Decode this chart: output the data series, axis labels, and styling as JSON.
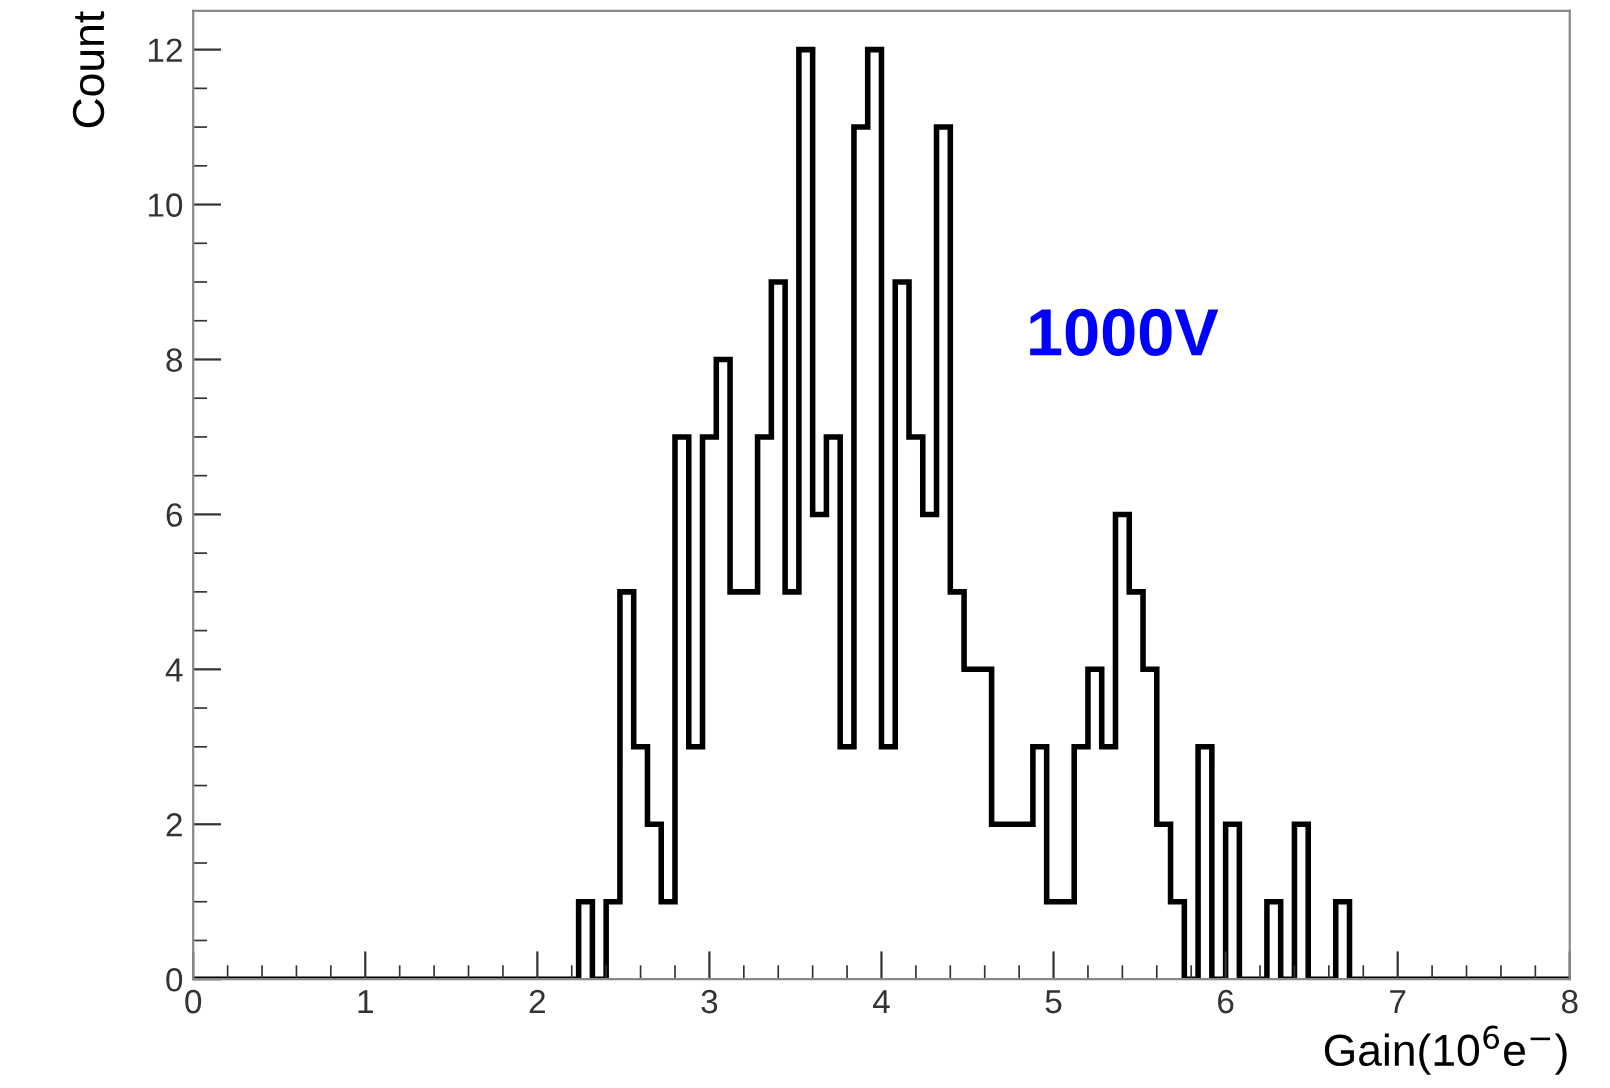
{
  "chart_data": {
    "type": "histogram",
    "xlabel": "Gain(10$^{6}$e$^{−}$)",
    "ylabel": "Count",
    "annotations": [
      "1000V"
    ],
    "bins": [
      0,
      0.08,
      0.16,
      0.24,
      0.32,
      0.4,
      0.48,
      0.56,
      0.64,
      0.72,
      0.8,
      0.88,
      0.96,
      1.04,
      1.12,
      1.2,
      1.28,
      1.36,
      1.44,
      1.52,
      1.6,
      1.68,
      1.76,
      1.84,
      1.92,
      2,
      2.08,
      2.16,
      2.24,
      2.32,
      2.4,
      2.48,
      2.56,
      2.64,
      2.72,
      2.8,
      2.88,
      2.96,
      3.04,
      3.12,
      3.2,
      3.28,
      3.36,
      3.44,
      3.52,
      3.6,
      3.68,
      3.76,
      3.84,
      3.92,
      4,
      4.08,
      4.16,
      4.24,
      4.32,
      4.4,
      4.48,
      4.56,
      4.64,
      4.72,
      4.8,
      4.88,
      4.96,
      5.04,
      5.12,
      5.2,
      5.28,
      5.36,
      5.44,
      5.52,
      5.6,
      5.68,
      5.76,
      5.84,
      5.92,
      6,
      6.08,
      6.16,
      6.24,
      6.32,
      6.4,
      6.48,
      6.56,
      6.64,
      6.72,
      6.8,
      6.88,
      6.96,
      7.04,
      7.12,
      7.2,
      7.28,
      7.36,
      7.44,
      7.52,
      7.6,
      7.68,
      7.76,
      7.84,
      7.92,
      8
    ],
    "values": [
      0,
      0,
      0,
      0,
      0,
      0,
      0,
      0,
      0,
      0,
      0,
      0,
      0,
      0,
      0,
      0,
      0,
      0,
      0,
      0,
      0,
      0,
      0,
      0,
      0,
      0,
      0,
      0,
      1,
      0,
      1,
      5,
      3,
      2,
      1,
      7,
      3,
      7,
      8,
      5,
      5,
      7,
      9,
      5,
      12,
      6,
      7,
      3,
      11,
      12,
      3,
      9,
      7,
      6,
      11,
      5,
      4,
      4,
      2,
      2,
      2,
      3,
      1,
      1,
      3,
      4,
      3,
      6,
      5,
      4,
      2,
      1,
      0,
      3,
      0,
      2,
      0,
      0,
      1,
      0,
      2,
      0,
      0,
      1,
      0,
      0,
      0,
      0,
      0,
      0,
      0,
      0,
      0,
      0,
      0,
      0,
      0,
      0,
      0,
      0
    ],
    "color": "#000000",
    "xlim": [
      0,
      8
    ],
    "xticks": [
      0,
      1,
      2,
      3,
      4,
      5,
      6,
      7,
      8
    ],
    "ylim": [
      0,
      12.5
    ],
    "yticks": [
      0,
      2,
      4,
      6,
      8,
      10,
      12
    ],
    "grid": false
  }
}
